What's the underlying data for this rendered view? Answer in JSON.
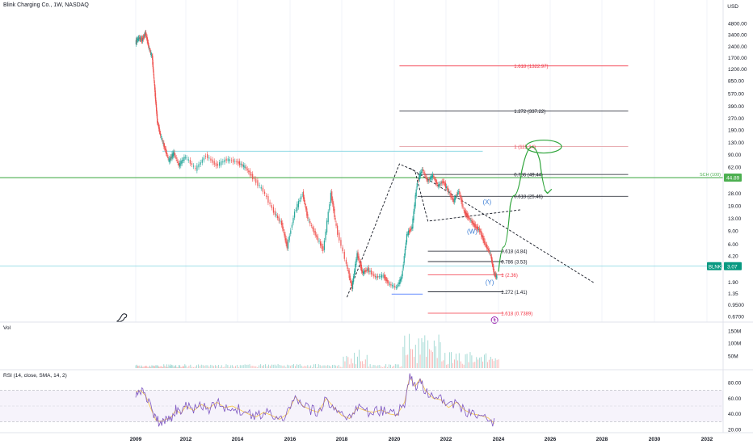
{
  "header": {
    "title": "Blink Charging Co., 1W, NASDAQ",
    "currency": "USD"
  },
  "colors": {
    "candle_up": "#26a69a",
    "candle_down": "#ef5350",
    "fib_black": "#131722",
    "fib_red": "#f23645",
    "fib_pink": "#e4a2a8",
    "green_line": "#4caf50",
    "green_path": "#2ea43a",
    "cyan_line": "#7fd3e0",
    "blue_label": "#2962ff",
    "blue_text": "#3d7fd6",
    "rsi_line": "#7e57c2",
    "rsi_ma": "#f5c542",
    "rsi_band": "rgba(126,87,194,0.07)",
    "grid": "#f0f3fa",
    "axis_text": "#131722",
    "price_tag": "#089981"
  },
  "chart_data": {
    "type": "line",
    "title": "Blink Charging Co., 1W, NASDAQ",
    "x_axis": {
      "labels": [
        "2009",
        "2012",
        "2014",
        "2016",
        "2018",
        "2020",
        "2022",
        "2024",
        "2026",
        "2028",
        "2030",
        "2032"
      ]
    },
    "y_axis": {
      "scale": "log",
      "currency": "USD",
      "ticks": [
        "4800.00",
        "3400.00",
        "2400.00",
        "1700.00",
        "1200.00",
        "850.00",
        "570.00",
        "390.00",
        "270.00",
        "190.00",
        "130.00",
        "90.00",
        "62.00",
        "44.00",
        "28.00",
        "19.00",
        "13.00",
        "9.00",
        "6.00",
        "4.20",
        "2.90",
        "1.90",
        "1.35",
        "0.9500",
        "0.6700"
      ]
    },
    "price_series": {
      "name": "BLNK",
      "points": [
        [
          2009.0,
          2700
        ],
        [
          2009.2,
          3100
        ],
        [
          2009.4,
          2900
        ],
        [
          2009.6,
          3600
        ],
        [
          2009.8,
          2300
        ],
        [
          2010.0,
          1700
        ],
        [
          2010.15,
          650
        ],
        [
          2010.3,
          250
        ],
        [
          2010.5,
          160
        ],
        [
          2010.75,
          110
        ],
        [
          2011.0,
          75
        ],
        [
          2011.3,
          95
        ],
        [
          2011.6,
          65
        ],
        [
          2012.0,
          85
        ],
        [
          2012.4,
          58
        ],
        [
          2012.8,
          88
        ],
        [
          2013.2,
          65
        ],
        [
          2013.6,
          78
        ],
        [
          2014.0,
          72
        ],
        [
          2014.3,
          62
        ],
        [
          2014.6,
          45
        ],
        [
          2015.0,
          30
        ],
        [
          2015.4,
          16
        ],
        [
          2015.7,
          11
        ],
        [
          2015.9,
          5.5
        ],
        [
          2016.2,
          16
        ],
        [
          2016.5,
          28
        ],
        [
          2016.7,
          13
        ],
        [
          2017.0,
          8
        ],
        [
          2017.3,
          5
        ],
        [
          2017.6,
          28
        ],
        [
          2017.8,
          10
        ],
        [
          2018.2,
          3.2
        ],
        [
          2018.4,
          1.6
        ],
        [
          2018.6,
          4.5
        ],
        [
          2018.8,
          2.5
        ],
        [
          2019.0,
          2.8
        ],
        [
          2019.3,
          2.2
        ],
        [
          2019.6,
          2.3
        ],
        [
          2019.8,
          1.8
        ],
        [
          2020.1,
          1.6
        ],
        [
          2020.3,
          2.2
        ],
        [
          2020.5,
          8
        ],
        [
          2020.7,
          10
        ],
        [
          2020.9,
          40
        ],
        [
          2021.1,
          58
        ],
        [
          2021.3,
          40
        ],
        [
          2021.5,
          48
        ],
        [
          2021.7,
          35
        ],
        [
          2021.9,
          40
        ],
        [
          2022.1,
          30
        ],
        [
          2022.3,
          22
        ],
        [
          2022.5,
          30
        ],
        [
          2022.7,
          16
        ],
        [
          2022.9,
          13
        ],
        [
          2023.1,
          10.5
        ],
        [
          2023.3,
          9
        ],
        [
          2023.5,
          6
        ],
        [
          2023.7,
          4.5
        ],
        [
          2023.85,
          2.4
        ],
        [
          2023.95,
          2.2
        ]
      ]
    },
    "last_price": {
      "label": "BLNK",
      "value": "3.07"
    },
    "horizontal_lines": [
      {
        "name": "green",
        "label": "SCH (100)",
        "value": "44.89"
      },
      {
        "name": "cyan",
        "value": "3.07"
      }
    ],
    "fib_levels": [
      {
        "label": "1.618 (1322.97)",
        "value": 1322.97,
        "style": "red"
      },
      {
        "label": "1.272 (337.22)",
        "value": 337.22,
        "style": "black"
      },
      {
        "label": "1 (115.14)",
        "value": 115.14,
        "style": "pink"
      },
      {
        "label": "0.786 (49.44)",
        "value": 49.44,
        "style": "black"
      },
      {
        "label": "0.618 (25.46)",
        "value": 25.46,
        "style": "black"
      },
      {
        "label": "0.618 (4.84)",
        "value": 4.84,
        "style": "black"
      },
      {
        "label": "0.786 (3.53)",
        "value": 3.53,
        "style": "black"
      },
      {
        "label": "1 (2.36)",
        "value": 2.36,
        "style": "red"
      },
      {
        "label": "1.272 (1.41)",
        "value": 1.41,
        "style": "black"
      },
      {
        "label": "1.618 (0.7389)",
        "value": 0.7389,
        "style": "red"
      }
    ],
    "wave_labels": [
      "(X)",
      "(W)",
      "(Y)"
    ],
    "projection": {
      "points": [
        [
          2024.0,
          2.6
        ],
        [
          2024.2,
          5.5
        ],
        [
          2024.45,
          19
        ],
        [
          2024.6,
          26
        ],
        [
          2024.9,
          55
        ],
        [
          2025.3,
          115
        ],
        [
          2025.6,
          75
        ],
        [
          2025.9,
          28
        ]
      ]
    },
    "volume": {
      "name": "Vol",
      "ticks": [
        "150M",
        "100M",
        "50M"
      ]
    },
    "rsi": {
      "name": "RSI (14, close, SMA, 14, 2)",
      "ticks": [
        "80.00",
        "60.00",
        "40.00",
        "20.00"
      ],
      "band": [
        30,
        70
      ],
      "points": [
        [
          2009.0,
          68
        ],
        [
          2009.3,
          70
        ],
        [
          2009.6,
          63
        ],
        [
          2009.9,
          47
        ],
        [
          2010.2,
          32
        ],
        [
          2010.5,
          30
        ],
        [
          2010.8,
          33
        ],
        [
          2011.1,
          35
        ],
        [
          2011.4,
          45
        ],
        [
          2011.7,
          40
        ],
        [
          2012.0,
          50
        ],
        [
          2012.3,
          44
        ],
        [
          2012.6,
          52
        ],
        [
          2012.9,
          47
        ],
        [
          2013.2,
          55
        ],
        [
          2013.5,
          48
        ],
        [
          2013.8,
          50
        ],
        [
          2014.1,
          45
        ],
        [
          2014.4,
          40
        ],
        [
          2014.7,
          36
        ],
        [
          2015.0,
          42
        ],
        [
          2015.3,
          38
        ],
        [
          2015.6,
          33
        ],
        [
          2015.9,
          40
        ],
        [
          2016.2,
          62
        ],
        [
          2016.5,
          50
        ],
        [
          2016.8,
          45
        ],
        [
          2017.1,
          42
        ],
        [
          2017.4,
          60
        ],
        [
          2017.7,
          48
        ],
        [
          2018.0,
          38
        ],
        [
          2018.3,
          34
        ],
        [
          2018.6,
          48
        ],
        [
          2018.9,
          44
        ],
        [
          2019.2,
          42
        ],
        [
          2019.5,
          45
        ],
        [
          2019.8,
          40
        ],
        [
          2020.1,
          38
        ],
        [
          2020.4,
          55
        ],
        [
          2020.6,
          88
        ],
        [
          2020.8,
          75
        ],
        [
          2021.0,
          85
        ],
        [
          2021.2,
          70
        ],
        [
          2021.5,
          60
        ],
        [
          2021.8,
          58
        ],
        [
          2022.1,
          48
        ],
        [
          2022.4,
          55
        ],
        [
          2022.7,
          45
        ],
        [
          2023.0,
          40
        ],
        [
          2023.3,
          38
        ],
        [
          2023.6,
          35
        ],
        [
          2023.9,
          26
        ]
      ]
    }
  }
}
